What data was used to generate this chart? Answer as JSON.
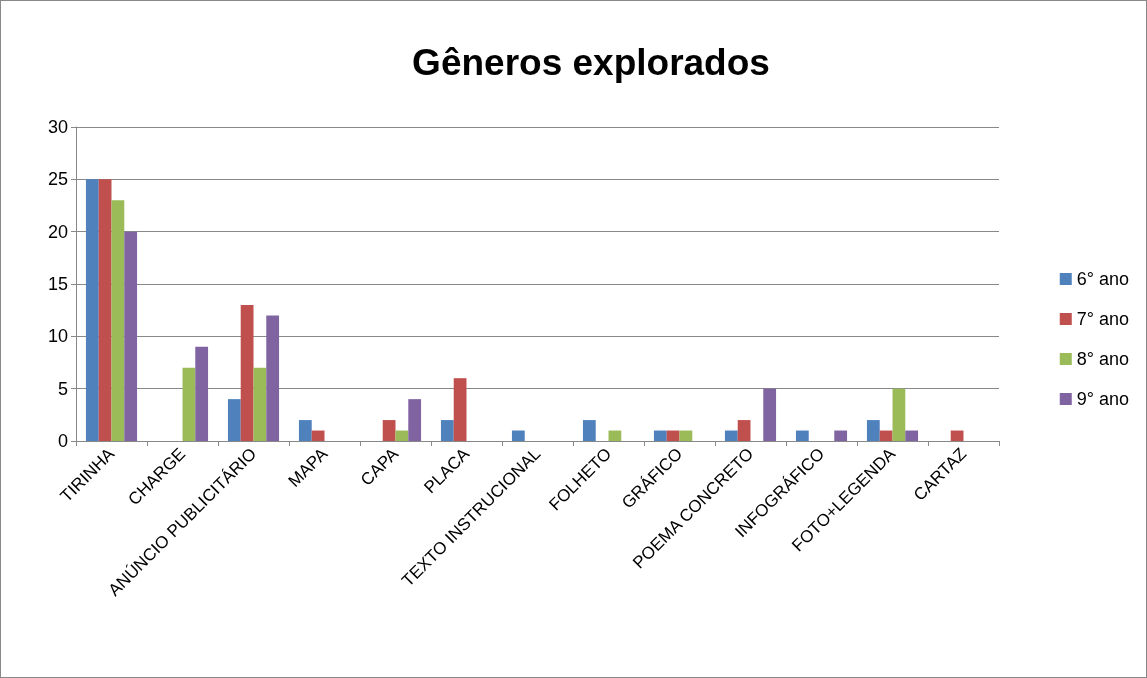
{
  "chart_data": {
    "type": "bar",
    "title": "Gêneros explorados",
    "categories": [
      "TIRINHA",
      "CHARGE",
      "ANÚNCIO PUBLICITÁRIO",
      "MAPA",
      "CAPA",
      "PLACA",
      "TEXTO INSTRUCIONAL",
      "FOLHETO",
      "GRÁFICO",
      "POEMA CONCRETO",
      "INFOGRÁFICO",
      "FOTO+LEGENDA",
      "CARTAZ"
    ],
    "series": [
      {
        "name": "6° ano",
        "color": "#4f81bd",
        "values": [
          25,
          0,
          4,
          2,
          0,
          2,
          1,
          2,
          1,
          1,
          1,
          2,
          0
        ]
      },
      {
        "name": "7° ano",
        "color": "#c0504d",
        "values": [
          25,
          0,
          13,
          1,
          2,
          6,
          0,
          0,
          1,
          2,
          0,
          1,
          1
        ]
      },
      {
        "name": "8° ano",
        "color": "#9bbb59",
        "values": [
          23,
          7,
          7,
          0,
          1,
          0,
          0,
          1,
          1,
          0,
          0,
          5,
          0
        ]
      },
      {
        "name": "9° ano",
        "color": "#8064a2",
        "values": [
          20,
          9,
          12,
          0,
          4,
          0,
          0,
          0,
          0,
          5,
          1,
          1,
          0
        ]
      }
    ],
    "ylim": [
      0,
      30
    ],
    "yticks": [
      0,
      5,
      10,
      15,
      20,
      25,
      30
    ],
    "grid": "y",
    "legend": "right"
  }
}
